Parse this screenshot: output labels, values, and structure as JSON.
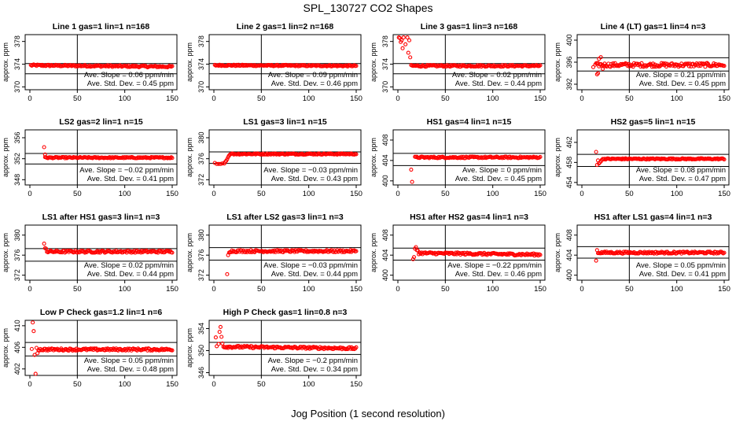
{
  "title": "SPL_130727  CO2 Shapes",
  "x_axis_title": "Jog Position (1 second resolution)",
  "colors": {
    "points": "#ff0000",
    "axes": "#000000"
  },
  "chart_data": [
    {
      "type": "scatter",
      "title": "Line 1 gas=1 lin=1 n=168",
      "ylabel": "approx. ppm",
      "xlim": [
        0,
        150
      ],
      "ylim": [
        369.5,
        379.2
      ],
      "xticks": [
        0,
        50,
        100,
        150
      ],
      "yticks": [
        370,
        374,
        378
      ],
      "vline": 50,
      "hlines": [
        374.1,
        372.3
      ],
      "slope_text": "Ave. Slope = 0.06  ppm/min",
      "std_text": "Ave. Std. Dev. = 0.45  ppm",
      "series": [
        {
          "start": 1,
          "end": 150,
          "base": 373.8,
          "noise": 0.15,
          "drift": -0.25,
          "spikes": []
        }
      ]
    },
    {
      "type": "scatter",
      "title": "Line 2 gas=1 lin=2 n=168",
      "ylabel": "approx. ppm",
      "xlim": [
        0,
        150
      ],
      "ylim": [
        369.5,
        379.2
      ],
      "xticks": [
        0,
        50,
        100,
        150
      ],
      "yticks": [
        370,
        374,
        378
      ],
      "vline": 50,
      "hlines": [
        374.1,
        372.3
      ],
      "slope_text": "Ave. Slope = 0.09  ppm/min",
      "std_text": "Ave. Std. Dev. = 0.46  ppm",
      "series": [
        {
          "start": 1,
          "end": 150,
          "base": 373.8,
          "noise": 0.12,
          "drift": -0.1,
          "spikes": []
        }
      ]
    },
    {
      "type": "scatter",
      "title": "Line 3 gas=1 lin=3 n=168",
      "ylabel": "approx. ppm",
      "xlim": [
        0,
        150
      ],
      "ylim": [
        369.5,
        379.2
      ],
      "xticks": [
        0,
        50,
        100,
        150
      ],
      "yticks": [
        370,
        374,
        378
      ],
      "vline": 50,
      "hlines": [
        374.1,
        372.3
      ],
      "slope_text": "Ave. Slope = 0.02  ppm/min",
      "std_text": "Ave. Std. Dev. = 0.44  ppm",
      "series": [
        {
          "start": 14,
          "end": 150,
          "base": 373.7,
          "noise": 0.15,
          "drift": 0,
          "spikes": [
            [
              1,
              378.7
            ],
            [
              2,
              378.6
            ],
            [
              3,
              377.9
            ],
            [
              4,
              378.2
            ],
            [
              5,
              376.8
            ],
            [
              6,
              378.7
            ],
            [
              8,
              377.5
            ],
            [
              10,
              378.7
            ],
            [
              11,
              376.0
            ],
            [
              12,
              378.2
            ],
            [
              13,
              375.2
            ]
          ]
        }
      ]
    },
    {
      "type": "scatter",
      "title": "Line 4 (LT) gas=1 lin=4 n=3",
      "ylabel": "approx. ppm",
      "xlim": [
        0,
        150
      ],
      "ylim": [
        391.0,
        401.0
      ],
      "xticks": [
        0,
        50,
        100,
        150
      ],
      "yticks": [
        392,
        396,
        400
      ],
      "vline": 50,
      "hlines": [
        396.8,
        394.4
      ],
      "slope_text": "Ave. Slope = 0.21  ppm/min",
      "std_text": "Ave. Std. Dev. = 0.45  ppm",
      "series": [
        {
          "start": 14,
          "end": 150,
          "base": 395.5,
          "noise": 0.35,
          "drift": 0,
          "spikes": [
            [
              12,
              395.1
            ],
            [
              16,
              393.8
            ],
            [
              17,
              394.0
            ],
            [
              18,
              396.6
            ],
            [
              20,
              396.9
            ],
            [
              22,
              394.8
            ]
          ]
        }
      ]
    },
    {
      "type": "scatter",
      "title": "LS2 gas=2 lin=1 n=15",
      "ylabel": "approx. ppm",
      "xlim": [
        0,
        150
      ],
      "ylim": [
        347.0,
        357.5
      ],
      "xticks": [
        0,
        50,
        100,
        150
      ],
      "yticks": [
        348,
        352,
        356
      ],
      "vline": 50,
      "hlines": [
        353.0,
        351.0
      ],
      "slope_text": "Ave. Slope = −0.02  ppm/min",
      "std_text": "Ave. Std. Dev. = 0.41  ppm",
      "series": [
        {
          "start": 16,
          "end": 150,
          "base": 352.2,
          "noise": 0.12,
          "drift": 0,
          "spikes": [
            [
              15,
              354.2
            ],
            [
              16,
              352.8
            ]
          ]
        }
      ]
    },
    {
      "type": "scatter",
      "title": "LS1 gas=3 lin=1 n=15",
      "ylabel": "approx. ppm",
      "xlim": [
        0,
        150
      ],
      "ylim": [
        371.0,
        381.5
      ],
      "xticks": [
        0,
        50,
        100,
        150
      ],
      "yticks": [
        372,
        376,
        380
      ],
      "vline": 50,
      "hlines": [
        377.3,
        375.1
      ],
      "slope_text": "Ave. Slope = −0.03  ppm/min",
      "std_text": "Ave. Std. Dev. = 0.43  ppm",
      "series": [
        {
          "start": 20,
          "end": 150,
          "base": 376.9,
          "noise": 0.12,
          "drift": 0,
          "spikes": [
            [
              1,
              375.2
            ],
            [
              3,
              375.0
            ],
            [
              5,
              375.0
            ],
            [
              7,
              375.0
            ],
            [
              9,
              375.1
            ],
            [
              11,
              375.1
            ],
            [
              12,
              375.4
            ],
            [
              13,
              375.6
            ],
            [
              14,
              375.9
            ],
            [
              15,
              376.3
            ],
            [
              16,
              376.6
            ],
            [
              17,
              376.8
            ],
            [
              18,
              376.9
            ],
            [
              19,
              377.0
            ]
          ]
        }
      ]
    },
    {
      "type": "scatter",
      "title": "HS1 gas=4 lin=1 n=15",
      "ylabel": "approx. ppm",
      "xlim": [
        0,
        150
      ],
      "ylim": [
        399.2,
        410.0
      ],
      "xticks": [
        0,
        50,
        100,
        150
      ],
      "yticks": [
        400,
        404,
        408
      ],
      "vline": 50,
      "hlines": [
        405.4,
        403.0
      ],
      "slope_text": "Ave. Slope = 0  ppm/min",
      "std_text": "Ave. Std. Dev. = 0.45  ppm",
      "series": [
        {
          "start": 18,
          "end": 150,
          "base": 404.6,
          "noise": 0.15,
          "drift": 0,
          "spikes": [
            [
              14,
              402.2
            ],
            [
              15,
              399.8
            ]
          ]
        }
      ]
    },
    {
      "type": "scatter",
      "title": "HS2 gas=5 lin=1 n=15",
      "ylabel": "approx. ppm",
      "xlim": [
        0,
        150
      ],
      "ylim": [
        453.5,
        464.5
      ],
      "xticks": [
        0,
        50,
        100,
        150
      ],
      "yticks": [
        454,
        458,
        462
      ],
      "vline": 50,
      "hlines": [
        459.6,
        457.2
      ],
      "slope_text": "Ave. Slope = 0.08  ppm/min",
      "std_text": "Ave. Std. Dev. = 0.47  ppm",
      "series": [
        {
          "start": 22,
          "end": 150,
          "base": 458.7,
          "noise": 0.12,
          "drift": 0,
          "spikes": [
            [
              15,
              460.1
            ],
            [
              16,
              457.5
            ],
            [
              17,
              458.4
            ],
            [
              18,
              457.8
            ],
            [
              19,
              458.0
            ],
            [
              20,
              458.2
            ],
            [
              21,
              458.5
            ]
          ]
        }
      ]
    },
    {
      "type": "scatter",
      "title": "LS1 after HS1 gas=3 lin=1 n=3",
      "ylabel": "approx. ppm",
      "xlim": [
        0,
        150
      ],
      "ylim": [
        371.0,
        382.0
      ],
      "xticks": [
        0,
        50,
        100,
        150
      ],
      "yticks": [
        372,
        376,
        380
      ],
      "vline": 50,
      "hlines": [
        377.3,
        374.8
      ],
      "slope_text": "Ave. Slope = 0.02  ppm/min",
      "std_text": "Ave. Std. Dev. = 0.44  ppm",
      "series": [
        {
          "start": 18,
          "end": 150,
          "base": 376.7,
          "noise": 0.22,
          "drift": 0,
          "spikes": [
            [
              15,
              378.3
            ],
            [
              16,
              377.4
            ],
            [
              17,
              377.3
            ]
          ]
        }
      ]
    },
    {
      "type": "scatter",
      "title": "LS1 after LS2 gas=3 lin=1 n=3",
      "ylabel": "approx. ppm",
      "xlim": [
        0,
        150
      ],
      "ylim": [
        371.0,
        382.0
      ],
      "xticks": [
        0,
        50,
        100,
        150
      ],
      "yticks": [
        372,
        376,
        380
      ],
      "vline": 50,
      "hlines": [
        377.5,
        375.0
      ],
      "slope_text": "Ave. Slope = −0.03  ppm/min",
      "std_text": "Ave. Std. Dev. = 0.44  ppm",
      "series": [
        {
          "start": 17,
          "end": 150,
          "base": 376.8,
          "noise": 0.22,
          "drift": 0,
          "spikes": [
            [
              14,
              372.2
            ],
            [
              15,
              376.0
            ],
            [
              16,
              376.5
            ]
          ]
        }
      ]
    },
    {
      "type": "scatter",
      "title": "HS1 after HS2 gas=4 lin=1 n=3",
      "ylabel": "approx. ppm",
      "xlim": [
        0,
        150
      ],
      "ylim": [
        399.0,
        410.0
      ],
      "xticks": [
        0,
        50,
        100,
        150
      ],
      "yticks": [
        400,
        404,
        408
      ],
      "vline": 50,
      "hlines": [
        405.4,
        403.0
      ],
      "slope_text": "Ave. Slope = −0.22  ppm/min",
      "std_text": "Ave. Std. Dev. = 0.46  ppm",
      "series": [
        {
          "start": 22,
          "end": 150,
          "base": 404.4,
          "noise": 0.22,
          "drift": -0.3,
          "spikes": [
            [
              16,
              403.2
            ],
            [
              17,
              403.6
            ],
            [
              18,
              405.3
            ],
            [
              19,
              405.6
            ],
            [
              20,
              405.0
            ],
            [
              21,
              404.9
            ]
          ]
        }
      ]
    },
    {
      "type": "scatter",
      "title": "HS1 after LS1 gas=4 lin=1 n=3",
      "ylabel": "approx. ppm",
      "xlim": [
        0,
        150
      ],
      "ylim": [
        399.0,
        410.0
      ],
      "xticks": [
        0,
        50,
        100,
        150
      ],
      "yticks": [
        400,
        404,
        408
      ],
      "vline": 50,
      "hlines": [
        405.7,
        403.4
      ],
      "slope_text": "Ave. Slope = 0.05  ppm/min",
      "std_text": "Ave. Std. Dev. = 0.41  ppm",
      "series": [
        {
          "start": 18,
          "end": 150,
          "base": 404.5,
          "noise": 0.2,
          "drift": 0,
          "spikes": [
            [
              15,
              402.9
            ],
            [
              16,
              405.0
            ],
            [
              17,
              404.4
            ]
          ]
        }
      ]
    },
    {
      "type": "scatter",
      "title": "Low P Check gas=1.2 lin=1 n=6",
      "ylabel": "approx. ppm",
      "xlim": [
        0,
        150
      ],
      "ylim": [
        400.8,
        411.0
      ],
      "xticks": [
        0,
        50,
        100,
        150
      ],
      "yticks": [
        402,
        406,
        410
      ],
      "vline": 50,
      "hlines": [
        406.9,
        404.4
      ],
      "slope_text": "Ave. Slope = 0.05  ppm/min",
      "std_text": "Ave. Std. Dev. = 0.48  ppm",
      "series": [
        {
          "start": 9,
          "end": 150,
          "base": 405.6,
          "noise": 0.2,
          "drift": 0,
          "spikes": [
            [
              2,
              405.7
            ],
            [
              3,
              410.6
            ],
            [
              4,
              409.0
            ],
            [
              5,
              404.6
            ],
            [
              6,
              401.1
            ],
            [
              7,
              405.9
            ],
            [
              8,
              404.9
            ]
          ]
        }
      ]
    },
    {
      "type": "scatter",
      "title": "High P Check gas=1 lin=0.8 n=3",
      "ylabel": "approx. ppm",
      "xlim": [
        0,
        150
      ],
      "ylim": [
        345.5,
        355.5
      ],
      "xticks": [
        0,
        50,
        100,
        150
      ],
      "yticks": [
        346,
        350,
        354
      ],
      "vline": 50,
      "hlines": [
        351.5,
        349.3
      ],
      "slope_text": "Ave. Slope = −0.2  ppm/min",
      "std_text": "Ave. Std. Dev. = 0.34  ppm",
      "series": [
        {
          "start": 10,
          "end": 150,
          "base": 350.7,
          "noise": 0.2,
          "drift": -0.3,
          "spikes": [
            [
              2,
              352.4
            ],
            [
              3,
              350.8
            ],
            [
              5,
              351.2
            ],
            [
              6,
              353.4
            ],
            [
              7,
              354.3
            ],
            [
              8,
              352.5
            ],
            [
              9,
              351.3
            ]
          ]
        }
      ]
    }
  ]
}
